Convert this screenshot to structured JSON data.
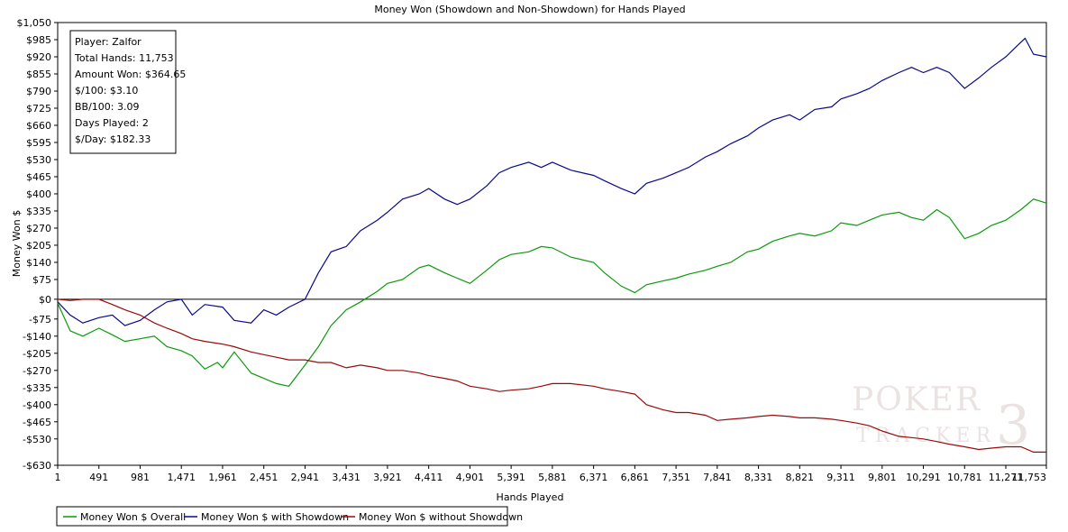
{
  "chart_data": {
    "type": "line",
    "title": "Money Won (Showdown and Non-Showdown) for Hands Played",
    "xlabel": "Hands Played",
    "ylabel": "Money Won $",
    "xlim": [
      1,
      11753
    ],
    "ylim": [
      -630,
      1050
    ],
    "x_ticks": [
      1,
      491,
      981,
      1471,
      1961,
      2451,
      2941,
      3431,
      3921,
      4411,
      4901,
      5391,
      5881,
      6371,
      6861,
      7351,
      7841,
      8331,
      8821,
      9311,
      9801,
      10291,
      10781,
      11271,
      11753
    ],
    "x_tick_labels": [
      "1",
      "491",
      "981",
      "1,471",
      "1,961",
      "2,451",
      "2,941",
      "3,431",
      "3,921",
      "4,411",
      "4,901",
      "5,391",
      "5,881",
      "6,371",
      "6,861",
      "7,351",
      "7,841",
      "8,331",
      "8,821",
      "9,311",
      "9,801",
      "10,291",
      "10,781",
      "11,271",
      "11,753"
    ],
    "y_ticks": [
      1050,
      985,
      920,
      855,
      790,
      725,
      660,
      595,
      530,
      465,
      400,
      335,
      270,
      205,
      140,
      75,
      0,
      -75,
      -140,
      -205,
      -270,
      -335,
      -400,
      -465,
      -530,
      -630
    ],
    "y_tick_labels": [
      "$1,050",
      "$985",
      "$920",
      "$855",
      "$790",
      "$725",
      "$660",
      "$595",
      "$530",
      "$465",
      "$400",
      "$335",
      "$270",
      "$205",
      "$140",
      "$75",
      "$0",
      "-$75",
      "-$140",
      "-$205",
      "-$270",
      "-$335",
      "-$400",
      "-$465",
      "-$530",
      "-$630"
    ],
    "grid": false,
    "legend_position": "bottom-left",
    "series": [
      {
        "name": "Money Won $ Overall",
        "color": "#0b9a0b",
        "x": [
          1,
          150,
          300,
          491,
          650,
          800,
          981,
          1150,
          1300,
          1471,
          1600,
          1750,
          1900,
          1961,
          2100,
          2300,
          2451,
          2600,
          2750,
          2941,
          3100,
          3250,
          3431,
          3600,
          3800,
          3921,
          4100,
          4300,
          4411,
          4600,
          4750,
          4901,
          5100,
          5250,
          5391,
          5600,
          5750,
          5881,
          6100,
          6371,
          6500,
          6700,
          6861,
          7000,
          7200,
          7351,
          7500,
          7700,
          7841,
          8000,
          8200,
          8331,
          8500,
          8700,
          8821,
          9000,
          9200,
          9311,
          9500,
          9650,
          9801,
          10000,
          10150,
          10291,
          10450,
          10600,
          10781,
          10950,
          11100,
          11271,
          11450,
          11600,
          11753
        ],
        "y": [
          -15,
          -120,
          -140,
          -110,
          -135,
          -160,
          -150,
          -140,
          -180,
          -195,
          -215,
          -265,
          -240,
          -260,
          -200,
          -280,
          -300,
          -320,
          -330,
          -250,
          -180,
          -100,
          -40,
          -10,
          30,
          60,
          75,
          120,
          130,
          100,
          80,
          60,
          110,
          150,
          170,
          180,
          200,
          195,
          160,
          140,
          100,
          50,
          25,
          55,
          70,
          80,
          95,
          110,
          125,
          140,
          180,
          190,
          220,
          240,
          250,
          240,
          260,
          290,
          280,
          300,
          320,
          330,
          310,
          300,
          340,
          310,
          230,
          250,
          280,
          300,
          340,
          380,
          365
        ]
      },
      {
        "name": "Money Won $ with Showdown",
        "color": "#0a0a8c",
        "x": [
          1,
          150,
          300,
          491,
          650,
          800,
          981,
          1150,
          1300,
          1471,
          1600,
          1750,
          1961,
          2100,
          2300,
          2451,
          2600,
          2750,
          2941,
          3100,
          3250,
          3431,
          3600,
          3800,
          3921,
          4100,
          4300,
          4411,
          4600,
          4750,
          4901,
          5100,
          5250,
          5391,
          5600,
          5750,
          5881,
          6100,
          6371,
          6500,
          6700,
          6861,
          7000,
          7200,
          7351,
          7500,
          7700,
          7841,
          8000,
          8200,
          8331,
          8500,
          8700,
          8821,
          9000,
          9200,
          9311,
          9500,
          9650,
          9801,
          10000,
          10150,
          10291,
          10450,
          10600,
          10781,
          10950,
          11100,
          11271,
          11400,
          11500,
          11600,
          11753
        ],
        "y": [
          -10,
          -60,
          -90,
          -70,
          -60,
          -100,
          -80,
          -40,
          -10,
          0,
          -60,
          -20,
          -30,
          -80,
          -90,
          -40,
          -60,
          -30,
          0,
          100,
          180,
          200,
          260,
          300,
          330,
          380,
          400,
          420,
          380,
          360,
          380,
          430,
          480,
          500,
          520,
          500,
          520,
          490,
          470,
          450,
          420,
          400,
          440,
          460,
          480,
          500,
          540,
          560,
          590,
          620,
          650,
          680,
          700,
          680,
          720,
          730,
          760,
          780,
          800,
          830,
          860,
          880,
          860,
          880,
          860,
          800,
          840,
          880,
          920,
          960,
          990,
          930,
          920
        ]
      },
      {
        "name": "Money Won $ without Showdown",
        "color": "#9a0a0a",
        "x": [
          1,
          150,
          300,
          491,
          650,
          800,
          981,
          1150,
          1300,
          1471,
          1600,
          1750,
          1961,
          2100,
          2300,
          2451,
          2600,
          2750,
          2941,
          3100,
          3250,
          3431,
          3600,
          3800,
          3921,
          4100,
          4300,
          4411,
          4600,
          4750,
          4901,
          5100,
          5250,
          5391,
          5600,
          5750,
          5881,
          6100,
          6371,
          6500,
          6700,
          6861,
          7000,
          7200,
          7351,
          7500,
          7700,
          7841,
          8000,
          8200,
          8331,
          8500,
          8700,
          8821,
          9000,
          9200,
          9311,
          9500,
          9650,
          9801,
          10000,
          10150,
          10291,
          10450,
          10600,
          10781,
          10950,
          11100,
          11271,
          11450,
          11600,
          11753
        ],
        "y": [
          0,
          -5,
          0,
          0,
          -20,
          -40,
          -60,
          -90,
          -110,
          -130,
          -150,
          -160,
          -170,
          -180,
          -200,
          -210,
          -220,
          -230,
          -230,
          -240,
          -240,
          -260,
          -250,
          -260,
          -270,
          -270,
          -280,
          -290,
          -300,
          -310,
          -330,
          -340,
          -350,
          -345,
          -340,
          -330,
          -320,
          -320,
          -330,
          -340,
          -350,
          -360,
          -400,
          -420,
          -430,
          -430,
          -440,
          -460,
          -455,
          -450,
          -445,
          -440,
          -445,
          -450,
          -450,
          -455,
          -460,
          -470,
          -480,
          -500,
          -520,
          -525,
          -530,
          -540,
          -550,
          -560,
          -570,
          -565,
          -560,
          -560,
          -580,
          -580
        ]
      }
    ]
  },
  "stats_box": {
    "lines": [
      "Player: Zalfor",
      "Total Hands: 11,753",
      "Amount Won: $364.65",
      "$/100: $3.10",
      "BB/100: 3.09",
      "Days Played: 2",
      "$/Day: $182.33"
    ]
  },
  "watermark": {
    "line1": "POKER",
    "line2": "TRACKER",
    "mark": "3"
  }
}
